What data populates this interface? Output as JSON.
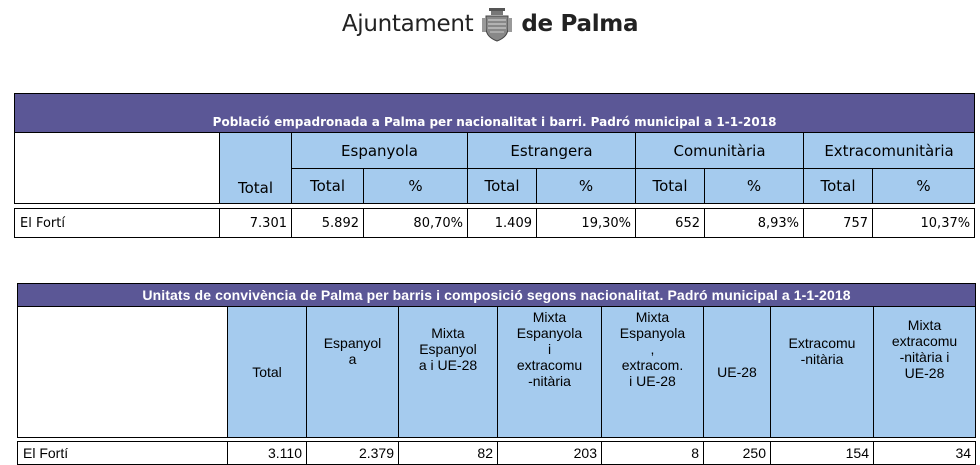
{
  "header": {
    "logo_text_regular": "Ajuntament",
    "logo_text_bold": "de Palma",
    "crest_icon": "palma-crest-icon"
  },
  "table1": {
    "title": "Població empadronada a Palma per nacionalitat i barri. Padró municipal a 1-1-2018",
    "groups": [
      "Espanyola",
      "Estrangera",
      "Comunitària",
      "Extracomunitària"
    ],
    "subheaders": [
      "Total",
      "Total",
      "%",
      "Total",
      "%",
      "Total",
      "%",
      "Total",
      "%"
    ],
    "row": {
      "name": "El Fortí",
      "values": [
        "7.301",
        "5.892",
        "80,70%",
        "1.409",
        "19,30%",
        "652",
        "8,93%",
        "757",
        "10,37%"
      ]
    }
  },
  "table2": {
    "title": "Unitats de convivència de Palma per barris i composició segons nacionalitat. Padró municipal a 1-1-2018",
    "headers": [
      "Total",
      "Espanyol\na",
      "Mixta\nEspanyol\na i UE-28",
      "Mixta\nEspanyola\ni\nextracomu\n-nitària",
      "Mixta\nEspanyola\n,\nextracom.\ni UE-28",
      "UE-28",
      "Extracomu\n-nitària",
      "Mixta\nextracomu\n-nitària i\nUE-28"
    ],
    "row": {
      "name": "El Fortí",
      "values": [
        "3.110",
        "2.379",
        "82",
        "203",
        "8",
        "250",
        "154",
        "34"
      ]
    }
  }
}
